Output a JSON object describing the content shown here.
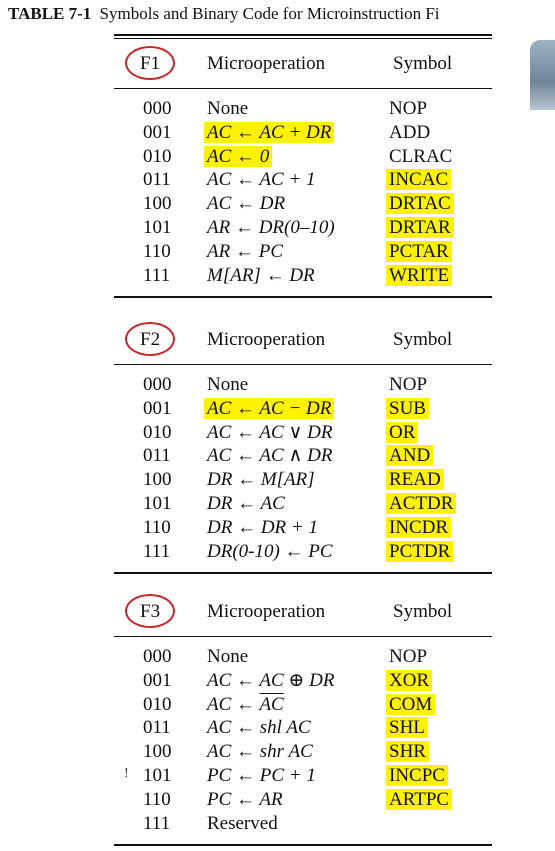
{
  "caption": {
    "number": "TABLE 7-1",
    "title": "Symbols and Binary Code for Microinstruction Fi"
  },
  "headers": {
    "micro": "Microoperation",
    "symbol": "Symbol"
  },
  "sections": [
    {
      "field": "F1",
      "rows": [
        {
          "code": "000",
          "micro": "None",
          "symbol": "NOP",
          "micro_hl": false,
          "sym_hl": false
        },
        {
          "code": "001",
          "micro": "AC ← AC + DR",
          "symbol": "ADD",
          "micro_hl": true,
          "sym_hl": false
        },
        {
          "code": "010",
          "micro": "AC ← 0",
          "symbol": "CLRAC",
          "micro_hl": true,
          "sym_hl": false
        },
        {
          "code": "011",
          "micro": "AC ← AC + 1",
          "symbol": "INCAC",
          "micro_hl": false,
          "sym_hl": true
        },
        {
          "code": "100",
          "micro": "AC ← DR",
          "symbol": "DRTAC",
          "micro_hl": false,
          "sym_hl": true
        },
        {
          "code": "101",
          "micro": "AR ← DR(0–10)",
          "symbol": "DRTAR",
          "micro_hl": false,
          "sym_hl": true
        },
        {
          "code": "110",
          "micro": "AR ← PC",
          "symbol": "PCTAR",
          "micro_hl": false,
          "sym_hl": true
        },
        {
          "code": "111",
          "micro": "M[AR] ← DR",
          "symbol": "WRITE",
          "micro_hl": false,
          "sym_hl": true
        }
      ]
    },
    {
      "field": "F2",
      "rows": [
        {
          "code": "000",
          "micro": "None",
          "symbol": "NOP",
          "micro_hl": false,
          "sym_hl": false
        },
        {
          "code": "001",
          "micro": "AC ← AC − DR",
          "symbol": "SUB",
          "micro_hl": true,
          "sym_hl": true
        },
        {
          "code": "010",
          "micro": "AC ← AC ∨ DR",
          "symbol": "OR",
          "micro_hl": false,
          "sym_hl": true
        },
        {
          "code": "011",
          "micro": "AC ← AC ∧ DR",
          "symbol": "AND",
          "micro_hl": false,
          "sym_hl": true
        },
        {
          "code": "100",
          "micro": "DR ← M[AR]",
          "symbol": "READ",
          "micro_hl": false,
          "sym_hl": true
        },
        {
          "code": "101",
          "micro": "DR ← AC",
          "symbol": "ACTDR",
          "micro_hl": false,
          "sym_hl": true
        },
        {
          "code": "110",
          "micro": "DR ← DR + 1",
          "symbol": "INCDR",
          "micro_hl": false,
          "sym_hl": true
        },
        {
          "code": "111",
          "micro": "DR(0-10) ← PC",
          "symbol": "PCTDR",
          "micro_hl": false,
          "sym_hl": true
        }
      ]
    },
    {
      "field": "F3",
      "rows": [
        {
          "code": "000",
          "micro": "None",
          "symbol": "NOP",
          "micro_hl": false,
          "sym_hl": false
        },
        {
          "code": "001",
          "micro": "AC ← AC ⊕ DR",
          "symbol": "XOR",
          "micro_hl": false,
          "sym_hl": true
        },
        {
          "code": "010",
          "micro": "AC ← AC",
          "symbol": "COM",
          "micro_hl": false,
          "sym_hl": true
        },
        {
          "code": "011",
          "micro": "AC ← shl AC",
          "symbol": "SHL",
          "micro_hl": false,
          "sym_hl": true
        },
        {
          "code": "100",
          "micro": "AC ← shr AC",
          "symbol": "SHR",
          "micro_hl": false,
          "sym_hl": true
        },
        {
          "code": "101",
          "micro": "PC ← PC + 1",
          "symbol": "INCPC",
          "micro_hl": false,
          "sym_hl": true
        },
        {
          "code": "110",
          "micro": "PC ← AR",
          "symbol": "ARTPC",
          "micro_hl": false,
          "sym_hl": true
        },
        {
          "code": "111",
          "micro": "Reserved",
          "symbol": "",
          "micro_hl": false,
          "sym_hl": false
        }
      ]
    }
  ],
  "margin_mark": "!",
  "colors": {
    "highlight": "#fff200",
    "circle": "#c62828"
  }
}
